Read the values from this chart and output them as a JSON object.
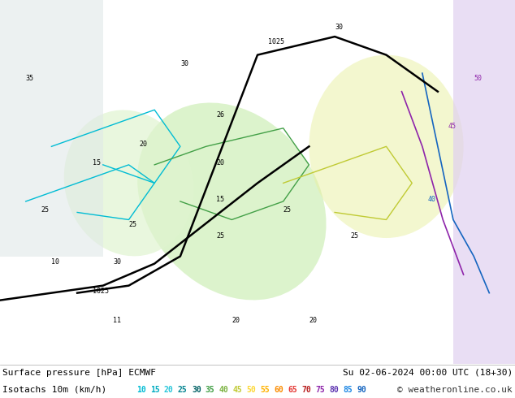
{
  "fig_width": 6.34,
  "fig_height": 4.9,
  "dpi": 100,
  "bg_color": "#e8e8e8",
  "map_bg_color": "#d0e8f0",
  "title_line1": "Surface pressure [hPa] ECMWF",
  "title_line2": "Isotachs 10m (km/h)",
  "date_str": "Su 02-06-2024 00:00 UTC (18+30)",
  "copyright": "© weatheronline.co.uk",
  "isotach_values": [
    10,
    15,
    20,
    25,
    30,
    35,
    40,
    45,
    50,
    55,
    60,
    65,
    70,
    75,
    80,
    85,
    90
  ],
  "isotach_colors": [
    "#c8f0f0",
    "#80e0e0",
    "#40d0d0",
    "#00b0b0",
    "#008080",
    "#00d000",
    "#80e000",
    "#e0e000",
    "#e0b000",
    "#e08000",
    "#e04000",
    "#c00000",
    "#800000",
    "#c000c0",
    "#8000c0",
    "#0000c0",
    "#000080"
  ],
  "bottom_bar_height": 0.08,
  "text_color_line1": "#000000",
  "text_color_date": "#000000",
  "text_color_copyright": "#000000",
  "font_size_main": 8,
  "font_size_legend": 7
}
